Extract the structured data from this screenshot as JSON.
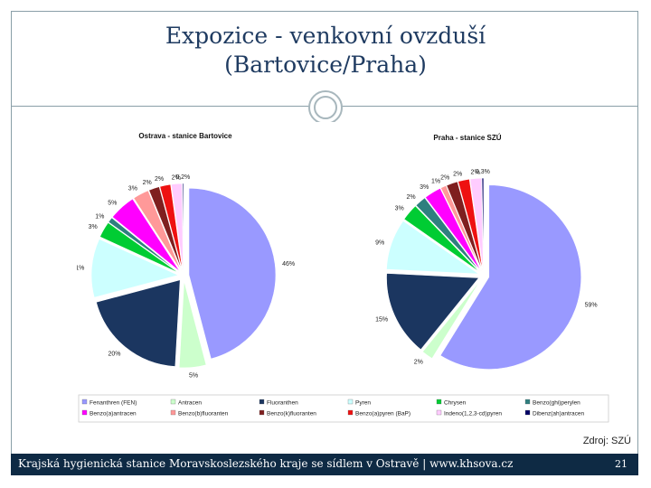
{
  "slide": {
    "title_line1": "Expozice - venkovní ovzduší",
    "title_line2": "(Bartovice/Praha)",
    "source": "Zdroj: SZÚ",
    "footer_text": "Krajská hygienická stanice Moravskoslezského kraje se sídlem v Ostravě | www.khsova.cz",
    "page_number": "21"
  },
  "chart_data": [
    {
      "type": "pie",
      "title": "Ostrava - stanice Bartovice",
      "categories": [
        "Fenanthren (FEN)",
        "Antracen",
        "Fluoranthen",
        "Pyren",
        "Chrysen",
        "Benzo(ghi)perylen",
        "Benzo(a)antracen",
        "Benzo(b)fluoranten",
        "Benzo(k)fluoranten",
        "Benzo(a)pyren (BaP)",
        "Indeno(1,2,3-cd)pyren",
        "Dibenz(ah)antracen"
      ],
      "values": [
        46,
        5,
        20,
        11,
        3,
        1,
        5,
        3,
        2,
        2,
        2,
        0.2
      ],
      "data_labels": [
        "46%",
        "5%",
        "20%",
        "11%",
        "3%",
        "1%",
        "5%",
        "3%",
        "2%",
        "2%",
        "2%",
        "0,2%"
      ],
      "exploded": true
    },
    {
      "type": "pie",
      "title": "Praha - stanice SZÚ",
      "categories": [
        "Fenanthren (FEN)",
        "Antracen",
        "Fluoranthen",
        "Pyren",
        "Chrysen",
        "Benzo(ghi)perylen",
        "Benzo(a)antracen",
        "Benzo(b)fluoranten",
        "Benzo(k)fluoranten",
        "Benzo(a)pyren (BaP)",
        "Indeno(1,2,3-cd)pyren",
        "Dibenz(ah)antracen"
      ],
      "values": [
        59,
        2,
        15,
        9,
        3,
        2,
        3,
        1,
        2,
        2,
        2,
        0.3
      ],
      "data_labels": [
        "59%",
        "2%",
        "15%",
        "9%",
        "3%",
        "2%",
        "3%",
        "1%",
        "2%",
        "2%",
        "2%",
        "0,3%"
      ],
      "exploded": true
    }
  ],
  "legend": {
    "placement": "bottom",
    "items": [
      {
        "label": "Fenanthren (FEN)",
        "color": "#9999ff"
      },
      {
        "label": "Antracen",
        "color": "#ccffcc"
      },
      {
        "label": "Fluoranthen",
        "color": "#1b3660"
      },
      {
        "label": "Pyren",
        "color": "#ccffff"
      },
      {
        "label": "Chrysen",
        "color": "#00cc33"
      },
      {
        "label": "Benzo(ghi)perylen",
        "color": "#2f7f7f"
      },
      {
        "label": "Benzo(a)antracen",
        "color": "#ff00ff"
      },
      {
        "label": "Benzo(b)fluoranten",
        "color": "#ff9999"
      },
      {
        "label": "Benzo(k)fluoranten",
        "color": "#7f1f1f"
      },
      {
        "label": "Benzo(a)pyren (BaP)",
        "color": "#ee1111"
      },
      {
        "label": "Indeno(1,2,3-cd)pyren",
        "color": "#ffccff"
      },
      {
        "label": "Dibenz(ah)antracen",
        "color": "#000066"
      }
    ]
  }
}
